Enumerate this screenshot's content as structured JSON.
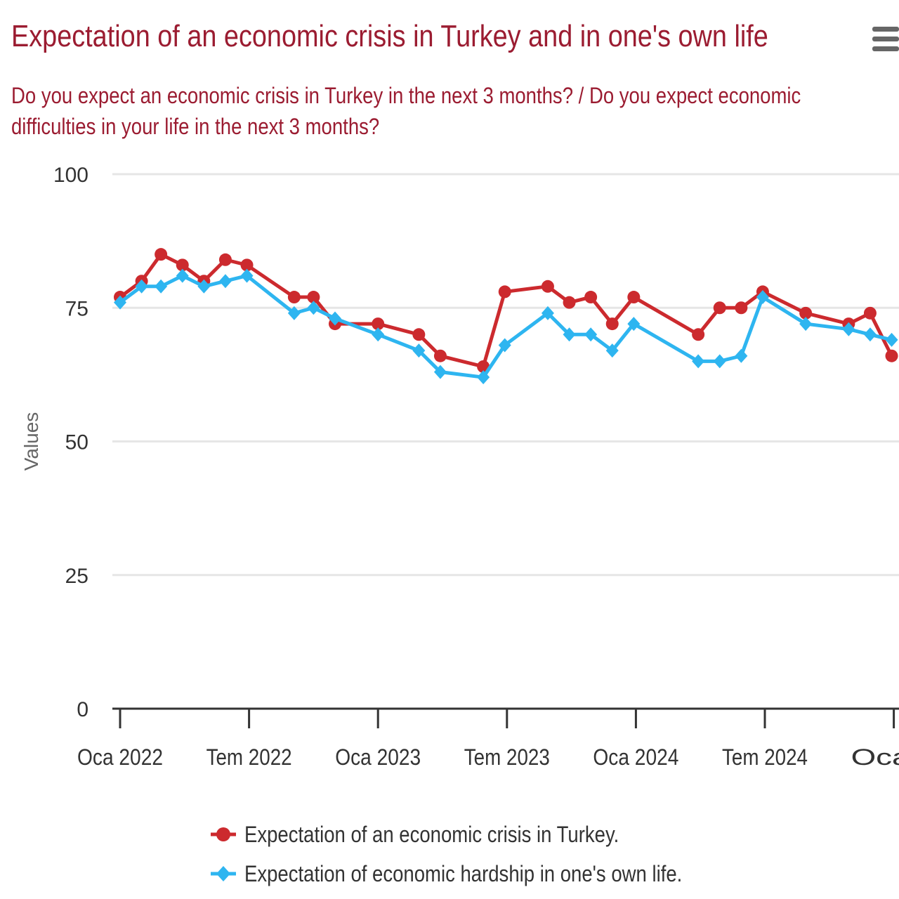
{
  "header": {
    "title": "Expectation of an economic crisis in Turkey and in one's own life",
    "subtitle": "Do you expect an economic crisis in Turkey in the next 3 months? / Do you expect economic difficulties in your life in the next 3 months?",
    "menu_icon": "hamburger-menu-icon"
  },
  "colors": {
    "title": "#9b1c31",
    "series_turkey": "#cc2a2e",
    "series_own_life": "#2eb5f0",
    "grid": "#e6e6e6",
    "axis_text": "#333333"
  },
  "chart_data": {
    "type": "line",
    "title": "Expectation of an economic crisis in Turkey and in one's own life",
    "ylabel": "Values",
    "xlabel": "",
    "ylim": [
      0,
      100
    ],
    "y_ticks": [
      0,
      25,
      50,
      75,
      100
    ],
    "x_ticks": [
      {
        "label": "Oca 2022",
        "month": 0
      },
      {
        "label": "Tem 2022",
        "month": 6
      },
      {
        "label": "Oca 2023",
        "month": 12
      },
      {
        "label": "Tem 2023",
        "month": 18
      },
      {
        "label": "Oca 2024",
        "month": 24
      },
      {
        "label": "Tem 2024",
        "month": 30
      },
      {
        "label": "Oca...",
        "month": 36
      }
    ],
    "x_unit": "months since Jan 2022",
    "series": [
      {
        "name": "Expectation of an economic crisis in Turkey.",
        "marker": "circle",
        "x": [
          0,
          1,
          1.9,
          2.9,
          3.9,
          4.9,
          5.9,
          8.1,
          9,
          10,
          12,
          13.9,
          14.9,
          16.9,
          17.9,
          19.9,
          20.9,
          21.9,
          22.9,
          23.9,
          26.9,
          27.9,
          28.9,
          29.9,
          31.9,
          33.9,
          34.9,
          35.9
        ],
        "values": [
          77,
          80,
          85,
          83,
          80,
          84,
          83,
          77,
          77,
          72,
          72,
          70,
          66,
          64,
          78,
          79,
          76,
          77,
          72,
          77,
          70,
          75,
          75,
          78,
          74,
          72,
          74,
          66
        ]
      },
      {
        "name": "Expectation of economic hardship in one's own life.",
        "marker": "diamond",
        "x": [
          0,
          1,
          1.9,
          2.9,
          3.9,
          4.9,
          5.9,
          8.1,
          9,
          10,
          12,
          13.9,
          14.9,
          16.9,
          17.9,
          19.9,
          20.9,
          21.9,
          22.9,
          23.9,
          26.9,
          27.9,
          28.9,
          29.9,
          31.9,
          33.9,
          34.9,
          35.9
        ],
        "values": [
          76,
          79,
          79,
          81,
          79,
          80,
          81,
          74,
          75,
          73,
          70,
          67,
          63,
          62,
          68,
          74,
          70,
          70,
          67,
          72,
          65,
          65,
          66,
          77,
          72,
          71,
          70,
          69
        ]
      }
    ],
    "legend": "bottom-center"
  }
}
